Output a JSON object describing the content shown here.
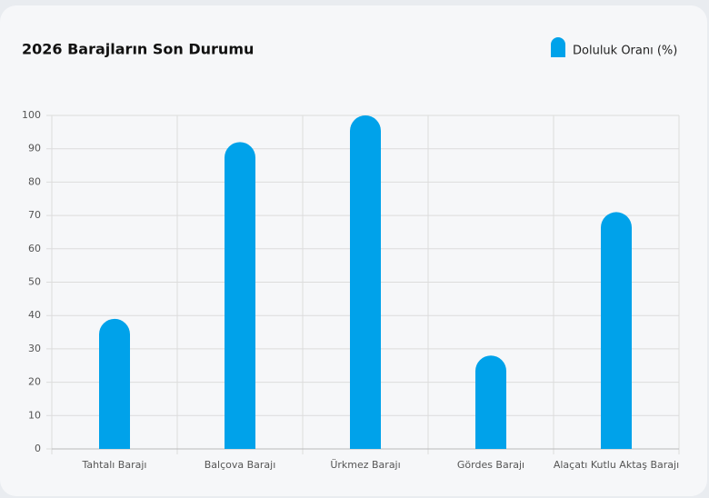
{
  "chart_data": {
    "type": "bar",
    "title": "2026 Barajların Son Durumu",
    "categories": [
      "Tahtalı Barajı",
      "Balçova Barajı",
      "Ürkmez Barajı",
      "Gördes Barajı",
      "Alaçatı Kutlu Aktaş Barajı"
    ],
    "series": [
      {
        "name": "Doluluk Oranı (%)",
        "color": "#00a2ea",
        "values": [
          39,
          92,
          100,
          28,
          71
        ]
      }
    ],
    "ylim": [
      0,
      100
    ],
    "yticks": [
      0,
      10,
      20,
      30,
      40,
      50,
      60,
      70,
      80,
      90,
      100
    ],
    "grid": true,
    "legend": "top-right"
  }
}
